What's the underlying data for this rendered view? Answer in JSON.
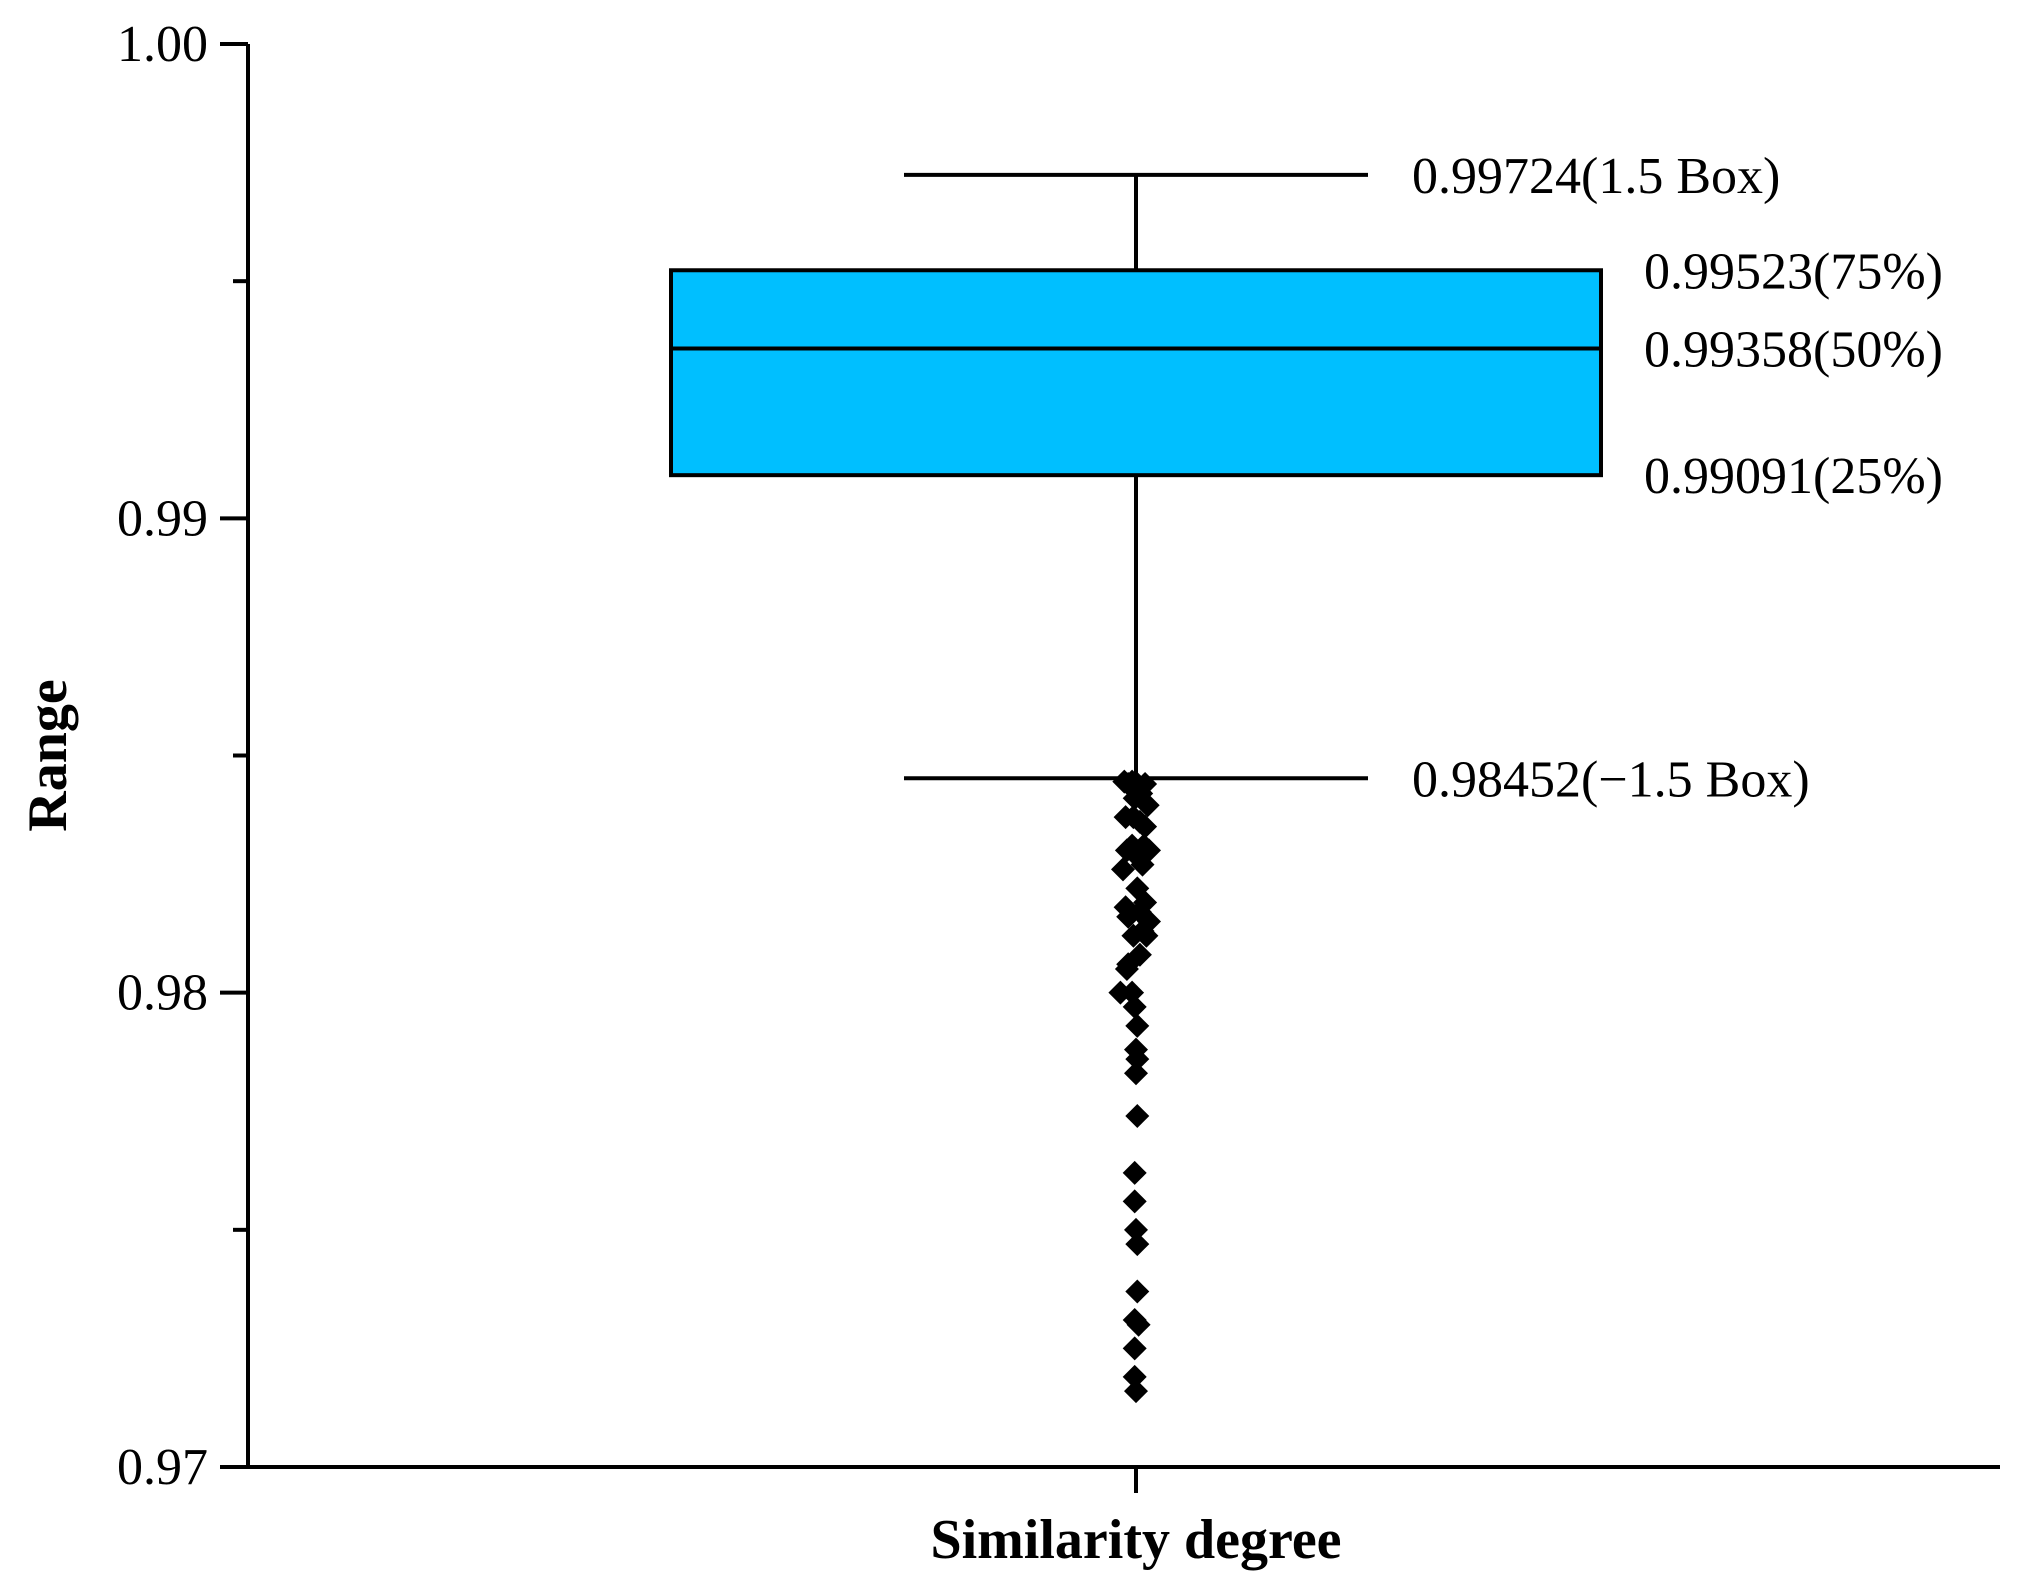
{
  "chart_data": {
    "type": "box",
    "xlabel": "Similarity degree",
    "ylabel": "Range",
    "ylim": [
      0.97,
      1.0
    ],
    "yticks": [
      {
        "value": 1.0,
        "label": "1.00"
      },
      {
        "value": 0.99,
        "label": "0.99"
      },
      {
        "value": 0.98,
        "label": "0.98"
      },
      {
        "value": 0.97,
        "label": "0.97"
      }
    ],
    "minor_ticks": [
      0.995,
      0.985,
      0.975
    ],
    "categories": [
      "Similarity degree"
    ],
    "box": {
      "upper_whisker": 0.99724,
      "q3": 0.99523,
      "median": 0.99358,
      "q1": 0.99091,
      "lower_whisker": 0.98452,
      "fill_color": "#00BFFF"
    },
    "annotations": [
      {
        "value": 0.99724,
        "label": "0.99724(1.5 Box)",
        "anchor": "whisker"
      },
      {
        "value": 0.99523,
        "label": "0.99523(75%)",
        "anchor": "box"
      },
      {
        "value": 0.99358,
        "label": "0.99358(50%)",
        "anchor": "box"
      },
      {
        "value": 0.99091,
        "label": "0.99091(25%)",
        "anchor": "box"
      },
      {
        "value": 0.98452,
        "label": "0.98452(−1.5 Box)",
        "anchor": "whisker"
      }
    ],
    "outliers": [
      {
        "x": -0.09,
        "y": 0.98445
      },
      {
        "x": -0.06,
        "y": 0.9844
      },
      {
        "x": -0.03,
        "y": 0.98445
      },
      {
        "x": 0.01,
        "y": 0.9844
      },
      {
        "x": 0.07,
        "y": 0.9844
      },
      {
        "x": 0.04,
        "y": 0.9842
      },
      {
        "x": -0.01,
        "y": 0.9841
      },
      {
        "x": 0.09,
        "y": 0.98395
      },
      {
        "x": -0.08,
        "y": 0.9837
      },
      {
        "x": -0.02,
        "y": 0.9837
      },
      {
        "x": 0.03,
        "y": 0.9836
      },
      {
        "x": 0.07,
        "y": 0.9835
      },
      {
        "x": 0.1,
        "y": 0.983
      },
      {
        "x": 0.06,
        "y": 0.9831
      },
      {
        "x": -0.03,
        "y": 0.9831
      },
      {
        "x": 0.0,
        "y": 0.9829
      },
      {
        "x": -0.07,
        "y": 0.983
      },
      {
        "x": -0.1,
        "y": 0.9826
      },
      {
        "x": 0.05,
        "y": 0.9827
      },
      {
        "x": 0.01,
        "y": 0.9822
      },
      {
        "x": 0.07,
        "y": 0.9819
      },
      {
        "x": -0.08,
        "y": 0.9818
      },
      {
        "x": -0.06,
        "y": 0.9816
      },
      {
        "x": 0.03,
        "y": 0.9817
      },
      {
        "x": 0.1,
        "y": 0.9815
      },
      {
        "x": 0.05,
        "y": 0.9813
      },
      {
        "x": -0.02,
        "y": 0.9812
      },
      {
        "x": 0.08,
        "y": 0.9812
      },
      {
        "x": 0.03,
        "y": 0.9808
      },
      {
        "x": -0.06,
        "y": 0.9806
      },
      {
        "x": -0.07,
        "y": 0.9805
      },
      {
        "x": -0.03,
        "y": 0.98
      },
      {
        "x": -0.12,
        "y": 0.98
      },
      {
        "x": -0.01,
        "y": 0.9797
      },
      {
        "x": 0.01,
        "y": 0.9793
      },
      {
        "x": 0.0,
        "y": 0.9788
      },
      {
        "x": 0.01,
        "y": 0.9786
      },
      {
        "x": 0.0,
        "y": 0.9783
      },
      {
        "x": 0.01,
        "y": 0.9774
      },
      {
        "x": -0.01,
        "y": 0.9762
      },
      {
        "x": -0.01,
        "y": 0.9756
      },
      {
        "x": 0.0,
        "y": 0.975
      },
      {
        "x": 0.01,
        "y": 0.9747
      },
      {
        "x": 0.01,
        "y": 0.9737
      },
      {
        "x": -0.01,
        "y": 0.9731
      },
      {
        "x": 0.02,
        "y": 0.973
      },
      {
        "x": -0.01,
        "y": 0.9725
      },
      {
        "x": -0.01,
        "y": 0.9719
      },
      {
        "x": 0.0,
        "y": 0.9716
      }
    ],
    "grid": false,
    "legend": "none"
  }
}
